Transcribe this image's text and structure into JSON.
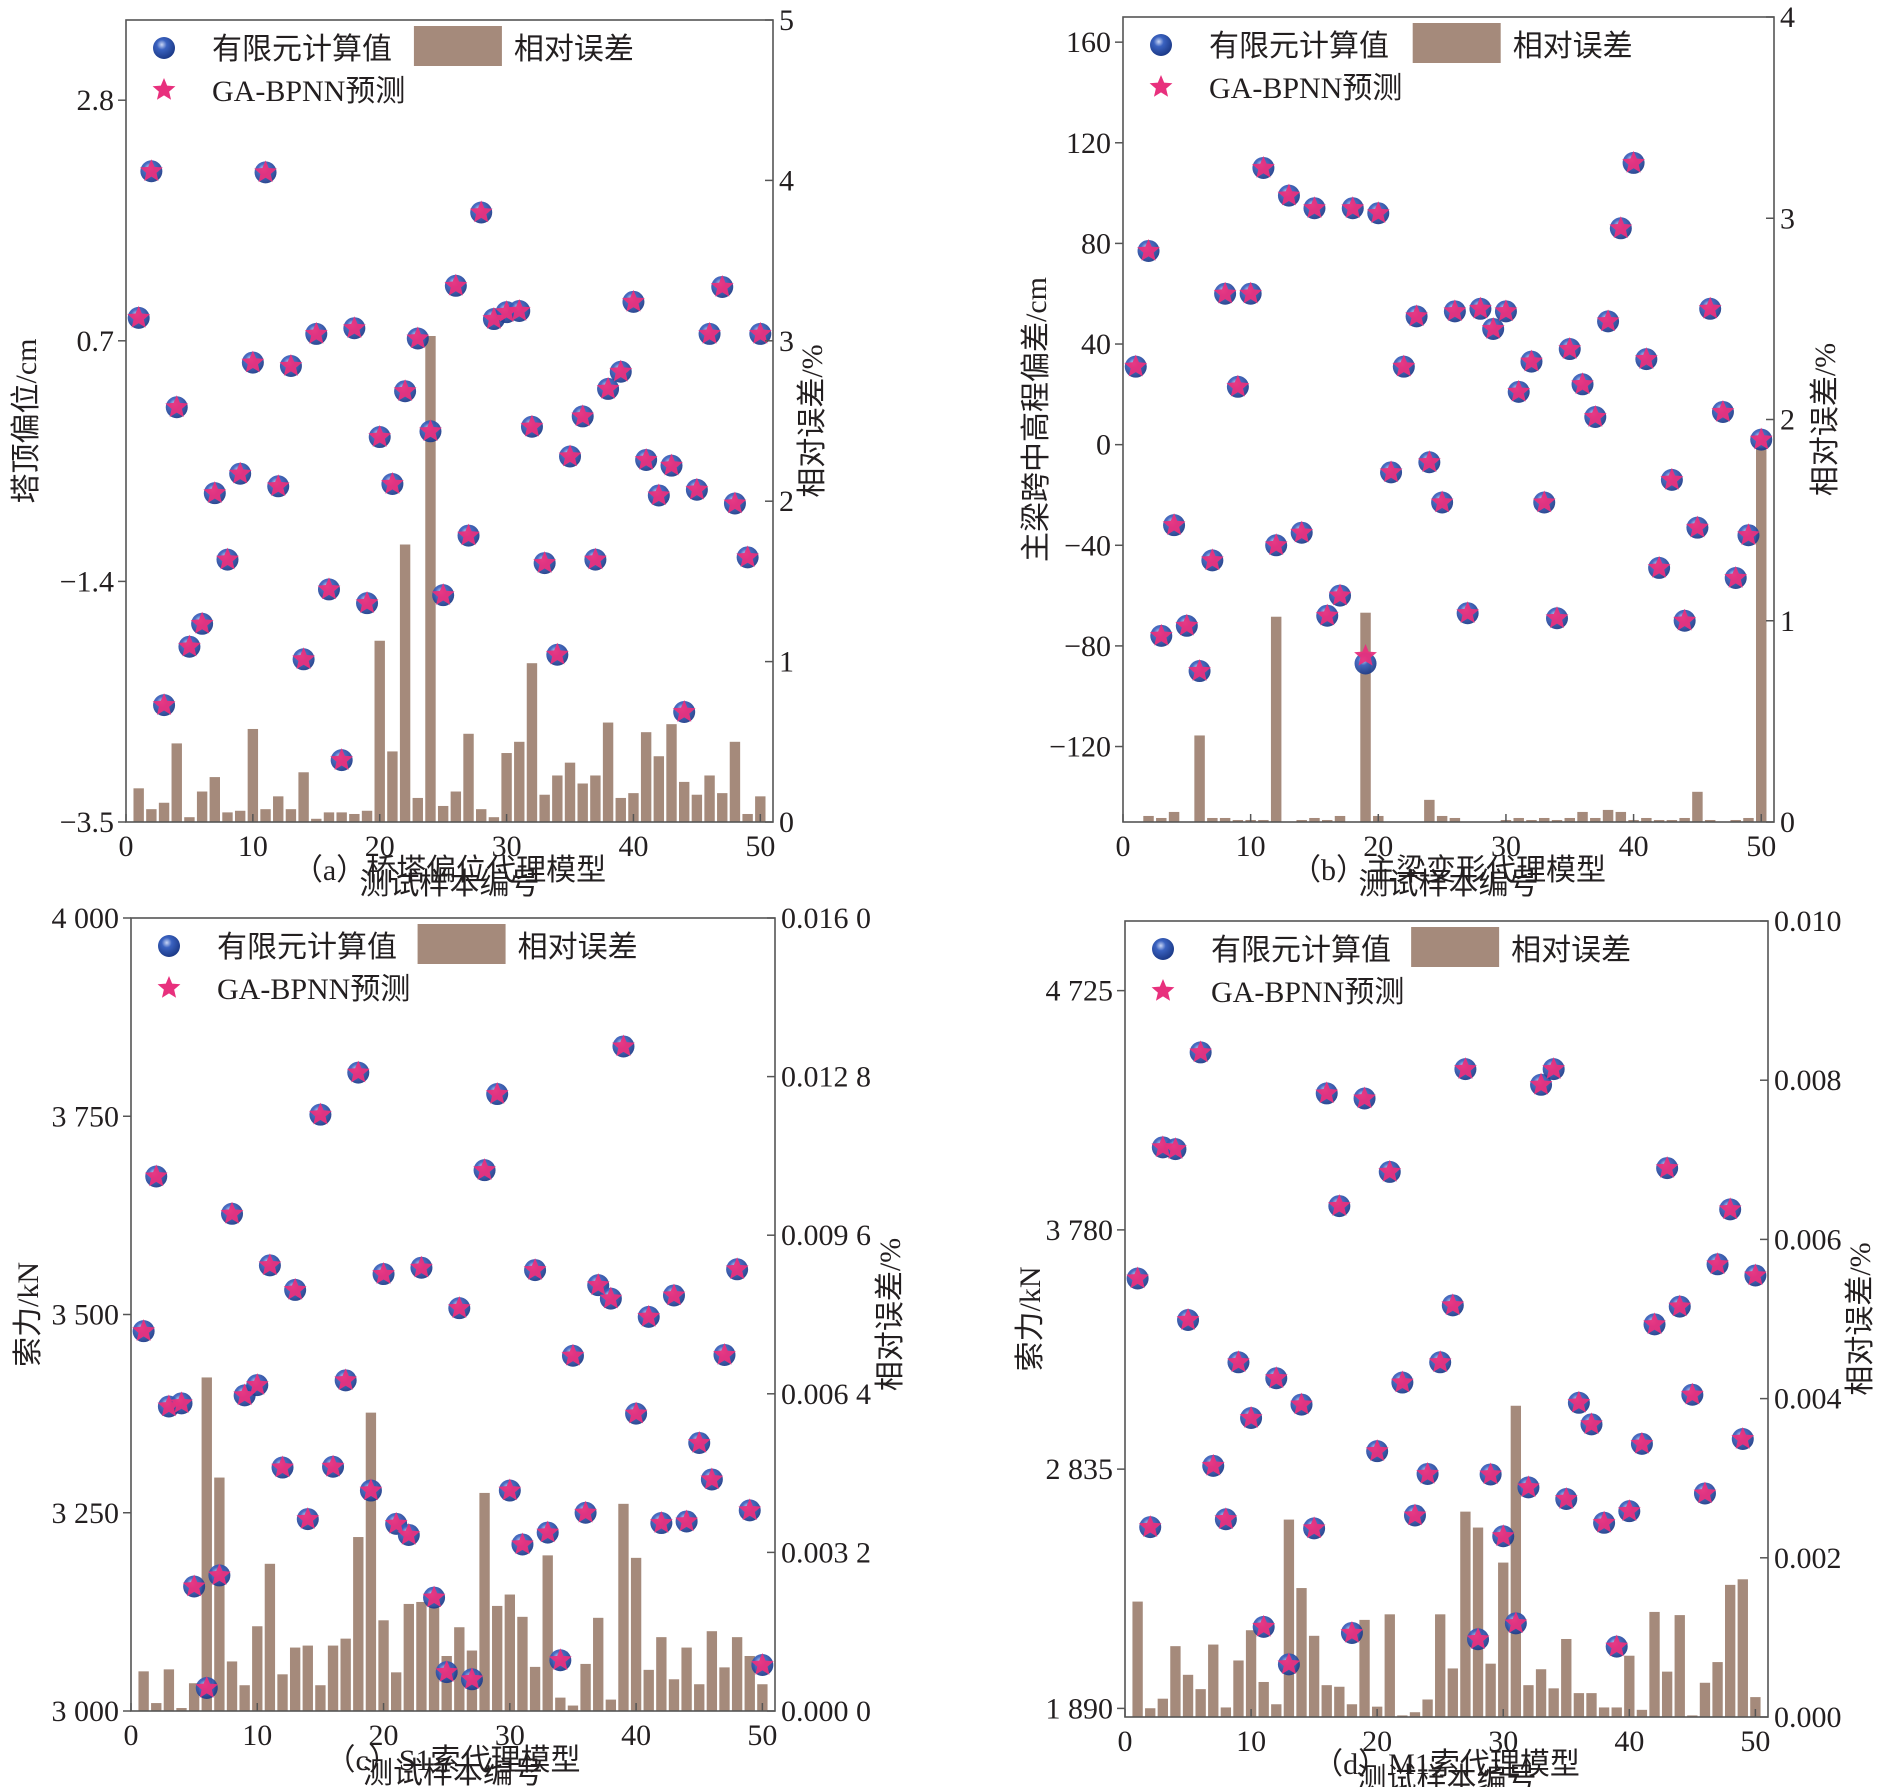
{
  "figure": {
    "legend": {
      "fem_label": "有限元计算值",
      "pred_label": "GA-BPNN预测",
      "error_label": "相对误差"
    },
    "colors": {
      "fem_marker": "#2a4fa3",
      "fem_highlight": "#9fb4e6",
      "pred_marker": "#e8307d",
      "bar": "#a58a7b",
      "axis": "#555555"
    }
  },
  "chart_data": [
    {
      "id": "a",
      "type": "bar+scatter",
      "caption": "（a）桥塔偏位代理模型",
      "xlabel": "测试样本编号",
      "ylabel": "塔顶偏位/cm",
      "y2label": "相对误差/%",
      "xlim": [
        0,
        51
      ],
      "xticks": [
        0,
        10,
        20,
        30,
        40,
        50
      ],
      "xtick_labels": [
        "0",
        "10",
        "20",
        "30",
        "40",
        "50"
      ],
      "ylim": [
        -3.5,
        3.5
      ],
      "yticks": [
        -3.5,
        -1.4,
        0.7,
        2.8
      ],
      "ytick_labels": [
        "−3.5",
        "−1.4",
        "0.7",
        "2.8"
      ],
      "y2lim": [
        0,
        5
      ],
      "y2ticks": [
        0,
        1,
        2,
        3,
        4,
        5
      ],
      "y2tick_labels": [
        "0",
        "1",
        "2",
        "3",
        "4",
        "5"
      ],
      "x": [
        1,
        2,
        3,
        4,
        5,
        6,
        7,
        8,
        9,
        10,
        11,
        12,
        13,
        14,
        15,
        16,
        17,
        18,
        19,
        20,
        21,
        22,
        23,
        24,
        25,
        26,
        27,
        28,
        29,
        30,
        31,
        32,
        33,
        34,
        35,
        36,
        37,
        38,
        39,
        40,
        41,
        42,
        43,
        44,
        45,
        46,
        47,
        48,
        49,
        50
      ],
      "series": [
        {
          "name": "有限元计算值",
          "kind": "scatter-circle",
          "axis": "left",
          "values": [
            0.9,
            2.18,
            -2.48,
            0.12,
            -1.97,
            -1.77,
            -0.63,
            -1.21,
            -0.46,
            0.51,
            2.17,
            -0.57,
            0.48,
            -2.08,
            0.76,
            -1.47,
            -2.96,
            0.81,
            -1.59,
            -0.14,
            -0.55,
            0.26,
            0.72,
            -0.09,
            -1.52,
            1.18,
            -1.0,
            1.82,
            0.89,
            0.95,
            0.96,
            -0.05,
            -1.24,
            -2.04,
            -0.31,
            0.04,
            -1.21,
            0.28,
            0.43,
            1.04,
            -0.34,
            -0.65,
            -0.39,
            -2.54,
            -0.6,
            0.76,
            1.17,
            -0.72,
            -1.19,
            0.76
          ]
        },
        {
          "name": "GA-BPNN预测",
          "kind": "scatter-star",
          "axis": "left",
          "values": [
            0.9,
            2.18,
            -2.48,
            0.12,
            -1.97,
            -1.77,
            -0.63,
            -1.21,
            -0.46,
            0.51,
            2.17,
            -0.57,
            0.48,
            -2.08,
            0.76,
            -1.47,
            -2.96,
            0.81,
            -1.59,
            -0.14,
            -0.55,
            0.26,
            0.72,
            -0.09,
            -1.52,
            1.18,
            -1.0,
            1.82,
            0.89,
            0.95,
            0.96,
            -0.05,
            -1.24,
            -2.04,
            -0.31,
            0.04,
            -1.21,
            0.28,
            0.43,
            1.04,
            -0.34,
            -0.65,
            -0.39,
            -2.54,
            -0.6,
            0.76,
            1.17,
            -0.72,
            -1.19,
            0.76
          ]
        },
        {
          "name": "相对误差",
          "kind": "bar",
          "axis": "right",
          "values": [
            0.21,
            0.08,
            0.12,
            0.49,
            0.03,
            0.19,
            0.28,
            0.06,
            0.07,
            0.58,
            0.08,
            0.16,
            0.08,
            0.31,
            0.02,
            0.06,
            0.06,
            0.05,
            0.07,
            1.13,
            0.44,
            1.73,
            0.15,
            3.03,
            0.1,
            0.19,
            0.55,
            0.08,
            0.03,
            0.43,
            0.5,
            0.99,
            0.17,
            0.29,
            0.37,
            0.24,
            0.29,
            0.62,
            0.15,
            0.18,
            0.56,
            0.41,
            0.61,
            0.25,
            0.17,
            0.29,
            0.18,
            0.5,
            0.05,
            0.16
          ]
        }
      ],
      "legend_position": "top"
    },
    {
      "id": "b",
      "type": "bar+scatter",
      "caption": "（b）主梁变形代理模型",
      "xlabel": "测试样本编号",
      "ylabel": "主梁跨中高程偏差/cm",
      "y2label": "相对误差/%",
      "xlim": [
        0,
        51
      ],
      "xticks": [
        0,
        10,
        20,
        30,
        40,
        50
      ],
      "xtick_labels": [
        "0",
        "10",
        "20",
        "30",
        "40",
        "50"
      ],
      "ylim": [
        -150,
        170
      ],
      "yticks": [
        -120,
        -80,
        -40,
        0,
        40,
        80,
        120,
        160
      ],
      "ytick_labels": [
        "−120",
        "−80",
        "−40",
        "0",
        "40",
        "80",
        "120",
        "160"
      ],
      "y2lim": [
        0,
        4
      ],
      "y2ticks": [
        0,
        1,
        2,
        3,
        4
      ],
      "y2tick_labels": [
        "0",
        "1",
        "2",
        "3",
        "4"
      ],
      "x": [
        1,
        2,
        3,
        4,
        5,
        6,
        7,
        8,
        9,
        10,
        11,
        12,
        13,
        14,
        15,
        16,
        17,
        18,
        19,
        20,
        21,
        22,
        23,
        24,
        25,
        26,
        27,
        28,
        29,
        30,
        31,
        32,
        33,
        34,
        35,
        36,
        37,
        38,
        39,
        40,
        41,
        42,
        43,
        44,
        45,
        46,
        47,
        48,
        49,
        50
      ],
      "series": [
        {
          "name": "有限元计算值",
          "kind": "scatter-circle",
          "axis": "left",
          "values": [
            31,
            77,
            -76,
            -32,
            -72,
            -90,
            -46,
            60,
            23,
            60,
            110,
            -40,
            99,
            -35,
            94,
            -68,
            -60,
            94,
            -87,
            92,
            -11,
            31,
            51,
            -7,
            -23,
            53,
            -67,
            54,
            46,
            53,
            21,
            33,
            -23,
            -69,
            38,
            24,
            11,
            49,
            86,
            112,
            34,
            -49,
            -14,
            -70,
            -33,
            54,
            13,
            -53,
            -36,
            2
          ]
        },
        {
          "name": "GA-BPNN预测",
          "kind": "scatter-star",
          "axis": "left",
          "values": [
            31,
            77,
            -76,
            -32,
            -72,
            -90,
            -46,
            60,
            23,
            60,
            110,
            -40,
            99,
            -35,
            94,
            -68,
            -60,
            94,
            -84,
            92,
            -11,
            31,
            51,
            -7,
            -23,
            53,
            -67,
            54,
            46,
            53,
            21,
            33,
            -23,
            -69,
            38,
            24,
            11,
            49,
            86,
            112,
            34,
            -49,
            -14,
            -70,
            -33,
            54,
            13,
            -53,
            -36,
            2
          ]
        },
        {
          "name": "相对误差",
          "kind": "bar",
          "axis": "right",
          "values": [
            0.0,
            0.03,
            0.02,
            0.05,
            0.0,
            0.43,
            0.02,
            0.02,
            0.01,
            0.01,
            0.01,
            1.02,
            0.0,
            0.01,
            0.02,
            0.01,
            0.03,
            0.0,
            1.04,
            0.03,
            0.0,
            0.0,
            0.0,
            0.11,
            0.03,
            0.02,
            0.0,
            0.0,
            0.0,
            0.01,
            0.02,
            0.01,
            0.02,
            0.01,
            0.02,
            0.05,
            0.02,
            0.06,
            0.05,
            0.01,
            0.02,
            0.01,
            0.01,
            0.02,
            0.15,
            0.01,
            0.0,
            0.01,
            0.02,
            1.86
          ]
        }
      ],
      "legend_position": "top"
    },
    {
      "id": "c",
      "type": "bar+scatter",
      "caption": "（c）S1索代理模型",
      "xlabel": "测试样本编号",
      "ylabel": "索力/kN",
      "y2label": "相对误差/%",
      "xlim": [
        0,
        51
      ],
      "xticks": [
        0,
        10,
        20,
        30,
        40,
        50
      ],
      "xtick_labels": [
        "0",
        "10",
        "20",
        "30",
        "40",
        "50"
      ],
      "ylim": [
        3000,
        4000
      ],
      "yticks": [
        3000,
        3250,
        3500,
        3750,
        4000
      ],
      "ytick_labels": [
        "3 000",
        "3 250",
        "3 500",
        "3 750",
        "4 000"
      ],
      "y2lim": [
        0,
        0.016
      ],
      "y2ticks": [
        0,
        0.0032,
        0.0064,
        0.0096,
        0.0128,
        0.016
      ],
      "y2tick_labels": [
        "0.000 0",
        "0.003 2",
        "0.006 4",
        "0.009 6",
        "0.012 8",
        "0.016 0"
      ],
      "x": [
        1,
        2,
        3,
        4,
        5,
        6,
        7,
        8,
        9,
        10,
        11,
        12,
        13,
        14,
        15,
        16,
        17,
        18,
        19,
        20,
        21,
        22,
        23,
        24,
        25,
        26,
        27,
        28,
        29,
        30,
        31,
        32,
        33,
        34,
        35,
        36,
        37,
        38,
        39,
        40,
        41,
        42,
        43,
        44,
        45,
        46,
        47,
        48,
        49,
        50
      ],
      "series": [
        {
          "name": "有限元计算值",
          "kind": "scatter-circle",
          "axis": "left",
          "values": [
            3479,
            3674,
            3384,
            3388,
            3157,
            3029,
            3171,
            3627,
            3398,
            3411,
            3562,
            3307,
            3531,
            3242,
            3752,
            3308,
            3417,
            3805,
            3278,
            3551,
            3236,
            3222,
            3559,
            3143,
            3049,
            3508,
            3040,
            3682,
            3778,
            3278,
            3210,
            3556,
            3225,
            3064,
            3448,
            3250,
            3537,
            3520,
            3838,
            3375,
            3497,
            3237,
            3524,
            3239,
            3338,
            3292,
            3449,
            3557,
            3253,
            3058
          ]
        },
        {
          "name": "GA-BPNN预测",
          "kind": "scatter-star",
          "axis": "left",
          "values": [
            3479,
            3674,
            3384,
            3388,
            3157,
            3029,
            3171,
            3627,
            3398,
            3411,
            3562,
            3307,
            3531,
            3242,
            3752,
            3308,
            3417,
            3805,
            3278,
            3551,
            3236,
            3222,
            3559,
            3143,
            3049,
            3508,
            3040,
            3682,
            3778,
            3278,
            3210,
            3556,
            3225,
            3064,
            3448,
            3250,
            3537,
            3520,
            3838,
            3375,
            3497,
            3237,
            3524,
            3239,
            3338,
            3292,
            3449,
            3557,
            3253,
            3058
          ]
        },
        {
          "name": "相对误差",
          "kind": "bar",
          "axis": "right",
          "values": [
            0.0008,
            0.00016,
            0.00084,
            6e-05,
            0.00056,
            0.00673,
            0.00471,
            0.001,
            0.00052,
            0.00171,
            0.00297,
            0.00074,
            0.00128,
            0.00132,
            0.00052,
            0.00132,
            0.00146,
            0.00351,
            0.00602,
            0.00183,
            0.00078,
            0.00216,
            0.0022,
            0.0021,
            0.00111,
            0.00169,
            0.00122,
            0.0044,
            0.00212,
            0.00235,
            0.0019,
            0.00089,
            0.00314,
            0.00027,
            0.00011,
            0.00095,
            0.00188,
            0.00023,
            0.00418,
            0.00309,
            0.00083,
            0.00149,
            0.00064,
            0.00128,
            0.00054,
            0.00161,
            0.00088,
            0.00149,
            0.00111,
            0.00054
          ]
        }
      ],
      "legend_position": "top"
    },
    {
      "id": "d",
      "type": "bar+scatter",
      "caption": "（d）M1索代理模型",
      "xlabel": "测试样本编号",
      "ylabel": "索力/kN",
      "y2label": "相对误差/%",
      "xlim": [
        0,
        51
      ],
      "xticks": [
        0,
        10,
        20,
        30,
        40,
        50
      ],
      "xtick_labels": [
        "0",
        "10",
        "20",
        "30",
        "40",
        "50"
      ],
      "ylim": [
        1856,
        5000
      ],
      "yticks": [
        1890,
        2835,
        3780,
        4725
      ],
      "ytick_labels": [
        "1 890",
        "2 835",
        "3 780",
        "4 725"
      ],
      "y2lim": [
        0,
        0.01
      ],
      "y2ticks": [
        0,
        0.002,
        0.004,
        0.006,
        0.008,
        0.01
      ],
      "y2tick_labels": [
        "0.000",
        "0.002",
        "0.004",
        "0.006",
        "0.008",
        "0.010"
      ],
      "x": [
        1,
        2,
        3,
        4,
        5,
        6,
        7,
        8,
        9,
        10,
        11,
        12,
        13,
        14,
        15,
        16,
        17,
        18,
        19,
        20,
        21,
        22,
        23,
        24,
        25,
        26,
        27,
        28,
        29,
        30,
        31,
        32,
        33,
        34,
        35,
        36,
        37,
        38,
        39,
        40,
        41,
        42,
        43,
        44,
        45,
        46,
        47,
        48,
        49,
        50
      ],
      "series": [
        {
          "name": "有限元计算值",
          "kind": "scatter-circle",
          "axis": "left",
          "values": [
            3588,
            2606,
            4106,
            4099,
            3424,
            4481,
            2848,
            2637,
            3257,
            3037,
            2212,
            3194,
            2064,
            3090,
            2601,
            4319,
            3874,
            2188,
            4299,
            2906,
            4009,
            3177,
            2652,
            2816,
            3257,
            3482,
            4415,
            2163,
            2814,
            2570,
            2226,
            2763,
            4353,
            4415,
            2717,
            3097,
            3012,
            2623,
            2134,
            2669,
            2935,
            3407,
            4024,
            3477,
            3129,
            2739,
            3644,
            3861,
            2954,
            3600
          ]
        },
        {
          "name": "GA-BPNN预测",
          "kind": "scatter-star",
          "axis": "left",
          "values": [
            3588,
            2606,
            4106,
            4099,
            3424,
            4481,
            2848,
            2637,
            3257,
            3037,
            2212,
            3194,
            2064,
            3090,
            2601,
            4319,
            3874,
            2188,
            4299,
            2906,
            4009,
            3177,
            2652,
            2816,
            3257,
            3482,
            4415,
            2163,
            2814,
            2570,
            2226,
            2763,
            4353,
            4415,
            2717,
            3097,
            3012,
            2623,
            2134,
            2669,
            2935,
            3407,
            4024,
            3477,
            3129,
            2739,
            3644,
            3861,
            2954,
            3600
          ]
        },
        {
          "name": "相对误差",
          "kind": "bar",
          "axis": "right",
          "values": [
            0.00145,
            0.00011,
            0.00023,
            0.00089,
            0.00053,
            0.00035,
            0.00091,
            0.00012,
            0.00071,
            0.00109,
            0.00044,
            0.00016,
            0.00248,
            0.00162,
            0.00102,
            0.0004,
            0.00038,
            0.00016,
            0.00122,
            0.00013,
            0.00129,
            2e-05,
            6e-05,
            0.00022,
            0.00129,
            0.00061,
            0.00258,
            0.00238,
            0.00067,
            0.00194,
            0.00391,
            0.0004,
            0.0006,
            0.00036,
            0.00098,
            0.0003,
            0.0003,
            0.00012,
            0.00012,
            0.00077,
            9e-05,
            0.00132,
            0.00057,
            0.00128,
            2e-05,
            0.00043,
            0.00069,
            0.00166,
            0.00173,
            0.00025
          ]
        }
      ],
      "legend_position": "top"
    }
  ]
}
